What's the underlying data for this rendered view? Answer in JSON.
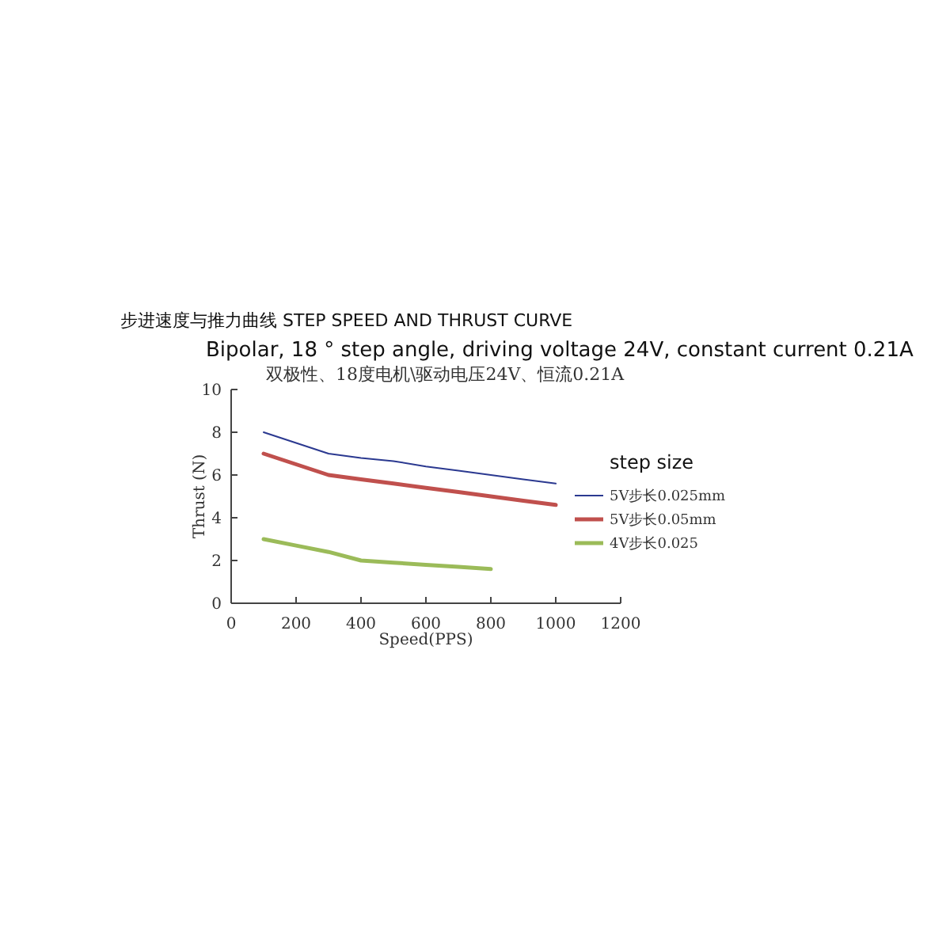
{
  "chart_data": {
    "type": "line",
    "title": "步进速度与推力曲线 STEP SPEED AND THRUST CURVE",
    "subtitle": "Bipolar, 18 ° step angle, driving voltage 24V, constant current 0.21A",
    "annotations": [
      "双极性、18度电机\\驱动电压24V、恒流0.21A"
    ],
    "xlabel": "Speed(PPS)",
    "ylabel": "Thrust (N)",
    "legend_title": "step size",
    "x": [
      100,
      200,
      300,
      400,
      500,
      600,
      700,
      800,
      900,
      1000
    ],
    "series": [
      {
        "name": "5V步长0.025mm",
        "color": "#2b3990",
        "values": [
          8,
          7.5,
          7,
          6.8,
          6.65,
          6.4,
          6.2,
          6,
          5.8,
          5.6
        ]
      },
      {
        "name": "5V步长0.05mm",
        "color": "#c0504d",
        "values": [
          7,
          6.5,
          6,
          5.8,
          5.6,
          5.4,
          5.2,
          5,
          4.8,
          4.6
        ]
      },
      {
        "name": "4V步长0.025",
        "color": "#9bbb59",
        "values": [
          3,
          2.7,
          2.4,
          2,
          1.9,
          1.8,
          1.7,
          1.6,
          null,
          null
        ]
      }
    ],
    "xlim": [
      0,
      1200
    ],
    "xticks": [
      0,
      200,
      400,
      600,
      800,
      1000,
      1200
    ],
    "ylim": [
      0,
      10
    ],
    "yticks": [
      0,
      2,
      4,
      6,
      8,
      10
    ],
    "grid": false,
    "legend": "right",
    "marker": "none",
    "line_style": "solid"
  }
}
